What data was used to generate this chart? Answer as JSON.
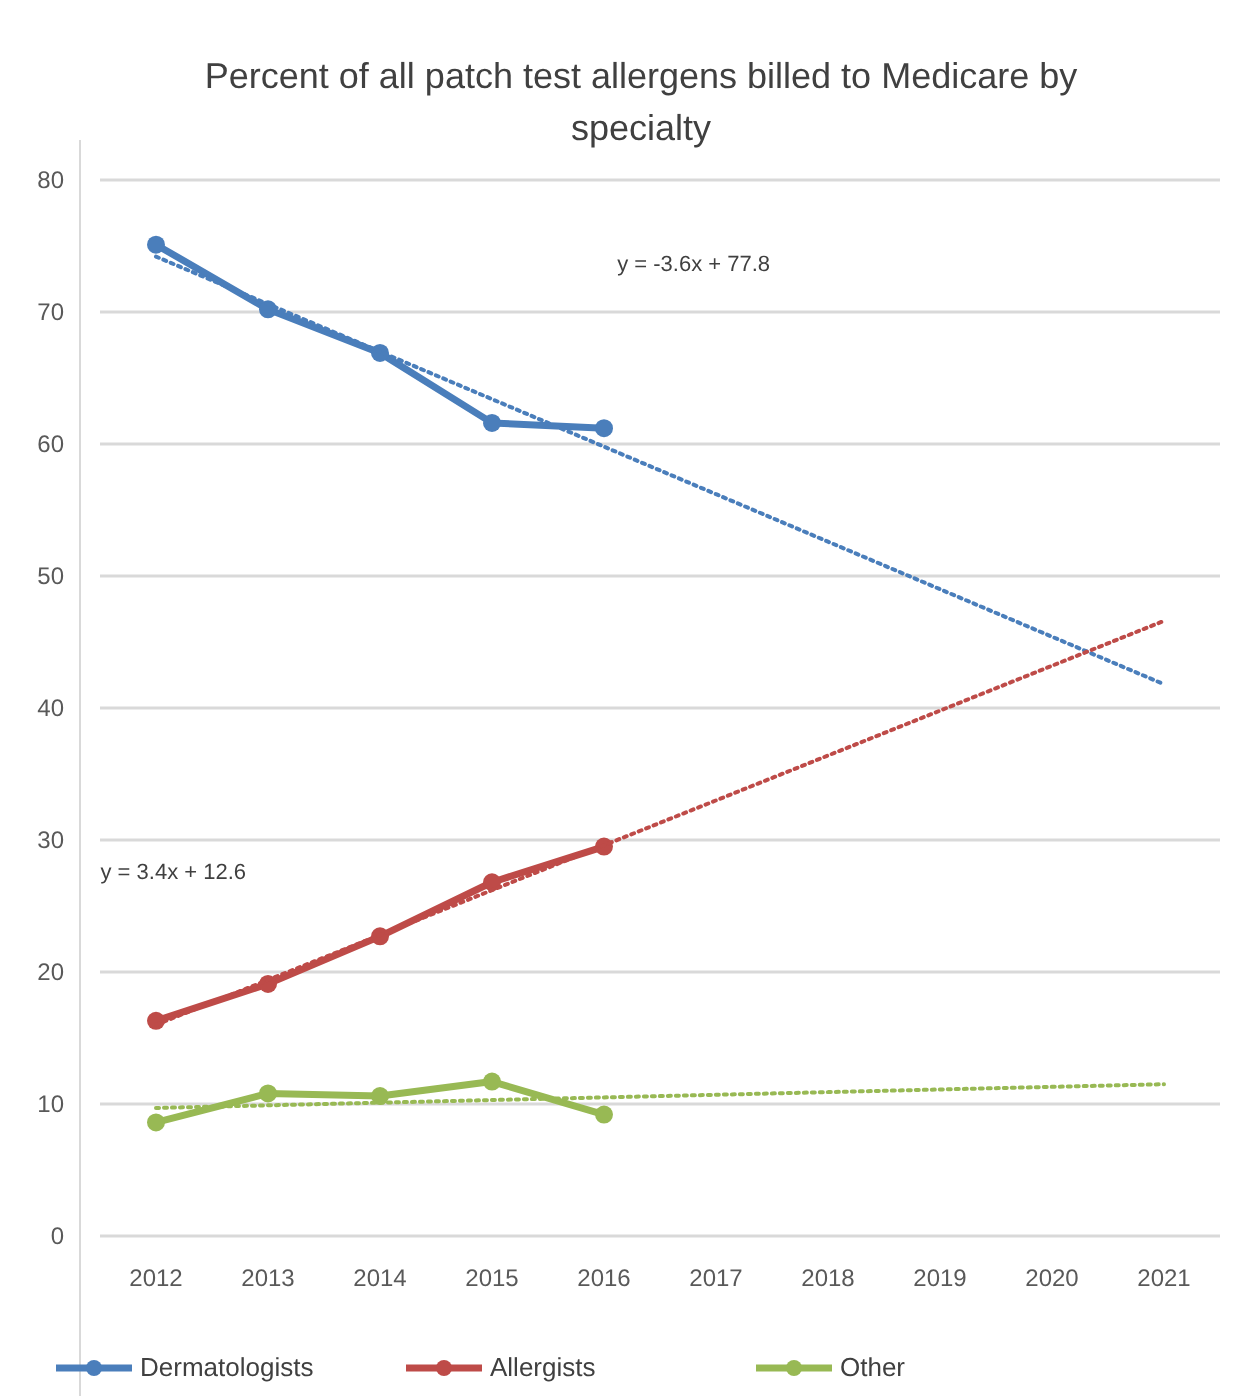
{
  "chart_data": {
    "type": "line",
    "title": "Percent of all patch test allergens billed to Medicare by specialty",
    "categories": [
      "2012",
      "2013",
      "2014",
      "2015",
      "2016",
      "2017",
      "2018",
      "2019",
      "2020",
      "2021"
    ],
    "series": [
      {
        "name": "Dermatologists",
        "color": "#4a7ebb",
        "marker": "circle",
        "line_style": "solid",
        "values": [
          75.1,
          70.2,
          66.9,
          61.6,
          61.2,
          null,
          null,
          null,
          null,
          null
        ]
      },
      {
        "name": "Allergists",
        "color": "#be4b48",
        "marker": "circle",
        "line_style": "solid",
        "values": [
          16.3,
          19.1,
          22.7,
          26.8,
          29.5,
          null,
          null,
          null,
          null,
          null
        ]
      },
      {
        "name": "Other",
        "color": "#98b954",
        "marker": "circle",
        "line_style": "solid",
        "values": [
          8.6,
          10.8,
          10.6,
          11.7,
          9.2,
          null,
          null,
          null,
          null,
          null
        ]
      },
      {
        "type": "line",
        "color": "#4a7ebb",
        "marker": "none",
        "line_style": "dotted",
        "values": [
          74.2,
          70.6,
          67.0,
          63.4,
          59.8,
          56.2,
          52.6,
          49.0,
          45.4,
          41.8
        ]
      },
      {
        "type": "line",
        "color": "#be4b48",
        "marker": "none",
        "line_style": "dotted",
        "values": [
          16.0,
          19.4,
          22.8,
          26.2,
          29.6,
          33.0,
          36.4,
          39.8,
          43.2,
          46.6
        ]
      },
      {
        "type": "line",
        "color": "#98b954",
        "marker": "none",
        "line_style": "dotted",
        "values": [
          9.7,
          9.9,
          10.1,
          10.3,
          10.5,
          10.7,
          10.9,
          11.1,
          11.3,
          11.5
        ]
      }
    ],
    "ylim": [
      0,
      80
    ],
    "yticks": [
      0,
      10,
      20,
      30,
      40,
      50,
      60,
      70,
      80
    ],
    "grid": "y",
    "legend": "bottom",
    "annotations": [
      "y = -3.6x + 77.8",
      "y = 3.4x + 12.6"
    ]
  }
}
